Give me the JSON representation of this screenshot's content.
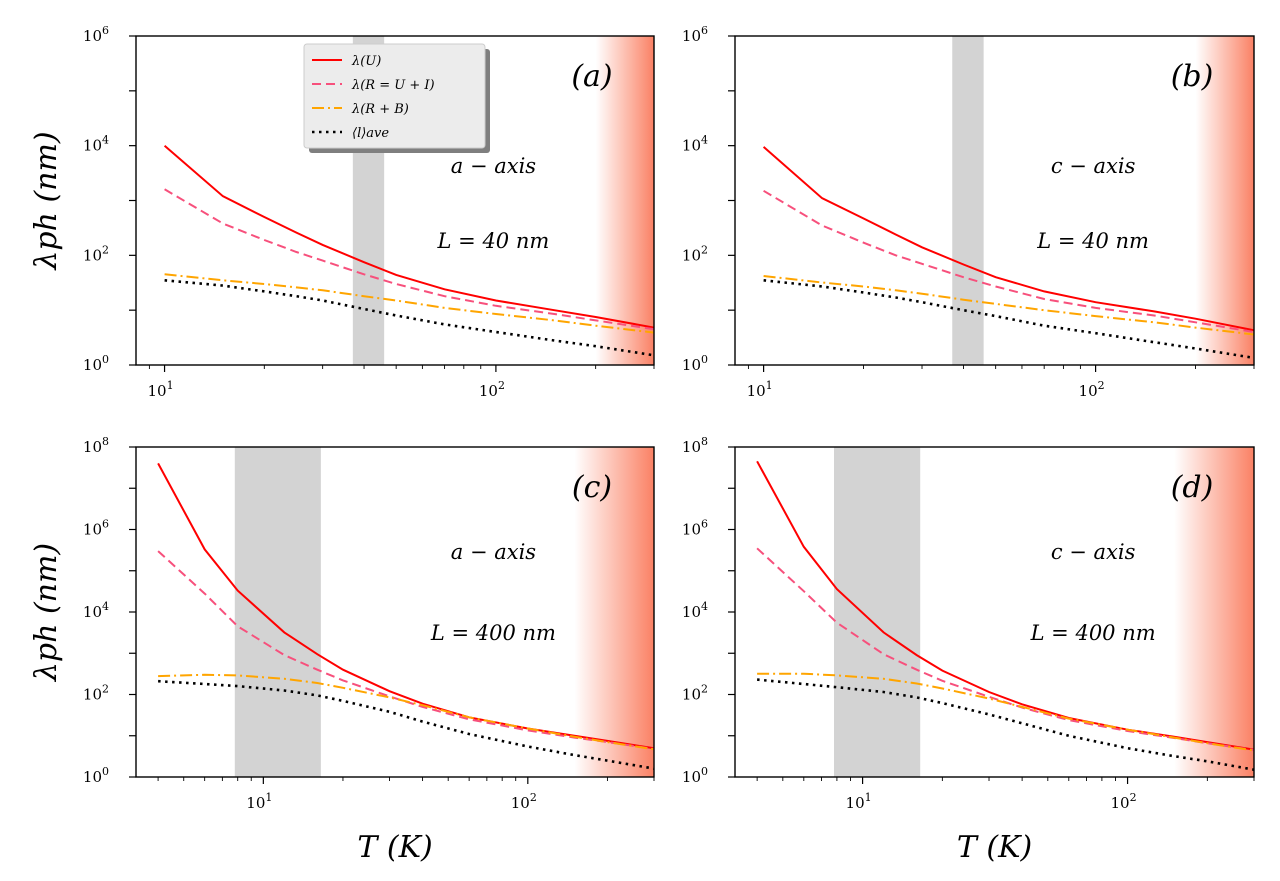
{
  "chart_data": [
    {
      "type": "line",
      "panel_label": "(a)",
      "axis_annotation": "a − axis",
      "size_annotation": "L = 40 nm",
      "xscale": "log",
      "yscale": "log",
      "xlim": [
        8.2,
        300
      ],
      "ylim": [
        1,
        1000000
      ],
      "xticks": [
        {
          "value": 10,
          "base": "10",
          "exp": "1"
        },
        {
          "value": 100,
          "base": "10",
          "exp": "2"
        }
      ],
      "yticks": [
        {
          "value": 1,
          "base": "10",
          "exp": "0"
        },
        {
          "value": 100,
          "base": "10",
          "exp": "2"
        },
        {
          "value": 10000,
          "base": "10",
          "exp": "4"
        },
        {
          "value": 1000000,
          "base": "10",
          "exp": "6"
        }
      ],
      "ylabel": "λph (nm)",
      "xlabel": "",
      "gray_band": [
        37,
        46
      ],
      "red_region": [
        200,
        300
      ],
      "legend": true,
      "x": [
        10,
        15,
        20,
        25,
        30,
        40,
        50,
        70,
        100,
        150,
        200,
        300
      ],
      "series": [
        {
          "name": "λ(U)",
          "values": [
            10000,
            1200,
            500,
            260,
            155,
            75,
            44,
            24,
            15,
            10,
            7.5,
            4.8
          ]
        },
        {
          "name": "λ(R = U + I)",
          "values": [
            1600,
            380,
            190,
            115,
            80,
            45,
            30,
            18,
            12,
            8.5,
            6.5,
            4.5
          ]
        },
        {
          "name": "λ(R + B)",
          "values": [
            45,
            35,
            30,
            26,
            23,
            18,
            15,
            11,
            8.5,
            6.5,
            5.2,
            3.9
          ]
        },
        {
          "name": "⟨l⟩ave",
          "values": [
            35,
            28,
            22,
            18,
            15,
            10.5,
            8,
            5.5,
            4,
            2.8,
            2.2,
            1.5
          ]
        }
      ]
    },
    {
      "type": "line",
      "panel_label": "(b)",
      "axis_annotation": "c − axis",
      "size_annotation": "L = 40 nm",
      "xscale": "log",
      "yscale": "log",
      "xlim": [
        8.2,
        300
      ],
      "ylim": [
        1,
        1000000
      ],
      "xticks": [
        {
          "value": 10,
          "base": "10",
          "exp": "1"
        },
        {
          "value": 100,
          "base": "10",
          "exp": "2"
        }
      ],
      "yticks": [
        {
          "value": 1,
          "base": "10",
          "exp": "0"
        },
        {
          "value": 100,
          "base": "10",
          "exp": "2"
        },
        {
          "value": 10000,
          "base": "10",
          "exp": "4"
        },
        {
          "value": 1000000,
          "base": "10",
          "exp": "6"
        }
      ],
      "ylabel": "",
      "xlabel": "",
      "gray_band": [
        37,
        46
      ],
      "red_region": [
        200,
        300
      ],
      "legend": false,
      "x": [
        10,
        15,
        20,
        25,
        30,
        40,
        50,
        70,
        100,
        150,
        200,
        300
      ],
      "series": [
        {
          "name": "λ(U)",
          "values": [
            9500,
            1100,
            470,
            240,
            140,
            68,
            40,
            22,
            14,
            9.5,
            7,
            4.3
          ]
        },
        {
          "name": "λ(R = U + I)",
          "values": [
            1500,
            350,
            170,
            100,
            70,
            40,
            27,
            16,
            11,
            8,
            6,
            4
          ]
        },
        {
          "name": "λ(R + B)",
          "values": [
            42,
            32,
            27,
            23,
            20,
            15.5,
            13,
            10,
            7.8,
            6,
            4.8,
            3.6
          ]
        },
        {
          "name": "⟨l⟩ave",
          "values": [
            35,
            27,
            21,
            17,
            14,
            10,
            7.8,
            5.2,
            3.8,
            2.6,
            2,
            1.35
          ]
        }
      ]
    },
    {
      "type": "line",
      "panel_label": "(c)",
      "axis_annotation": "a − axis",
      "size_annotation": "L = 400 nm",
      "xscale": "log",
      "yscale": "log",
      "xlim": [
        3.3,
        300
      ],
      "ylim": [
        1,
        100000000
      ],
      "xticks": [
        {
          "value": 10,
          "base": "10",
          "exp": "1"
        },
        {
          "value": 100,
          "base": "10",
          "exp": "2"
        }
      ],
      "yticks": [
        {
          "value": 1,
          "base": "10",
          "exp": "0"
        },
        {
          "value": 100,
          "base": "10",
          "exp": "2"
        },
        {
          "value": 10000,
          "base": "10",
          "exp": "4"
        },
        {
          "value": 1000000,
          "base": "10",
          "exp": "6"
        },
        {
          "value": 100000000,
          "base": "10",
          "exp": "8"
        }
      ],
      "ylabel": "λph (nm)",
      "xlabel": "T (K)",
      "gray_band": [
        7.8,
        16.5
      ],
      "red_region": [
        150,
        300
      ],
      "legend": false,
      "x": [
        4,
        6,
        8,
        12,
        16,
        20,
        30,
        40,
        60,
        100,
        150,
        200,
        300
      ],
      "series": [
        {
          "name": "λ(U)",
          "values": [
            40000000,
            330000,
            33000,
            3200,
            950,
            400,
            120,
            60,
            28,
            15,
            10,
            7.5,
            5
          ]
        },
        {
          "name": "λ(R = U + I)",
          "values": [
            300000,
            28000,
            4500,
            900,
            400,
            220,
            90,
            50,
            25,
            13.5,
            9,
            7,
            4.8
          ]
        },
        {
          "name": "λ(R + B)",
          "values": [
            280,
            300,
            290,
            240,
            190,
            145,
            85,
            55,
            28,
            15,
            9.5,
            7,
            4.7
          ]
        },
        {
          "name": "⟨l⟩ave",
          "values": [
            210,
            180,
            160,
            125,
            95,
            70,
            38,
            22,
            11,
            5.5,
            3.4,
            2.5,
            1.6
          ]
        }
      ]
    },
    {
      "type": "line",
      "panel_label": "(d)",
      "axis_annotation": "c − axis",
      "size_annotation": "L = 400 nm",
      "xscale": "log",
      "yscale": "log",
      "xlim": [
        3.3,
        300
      ],
      "ylim": [
        1,
        100000000
      ],
      "xticks": [
        {
          "value": 10,
          "base": "10",
          "exp": "1"
        },
        {
          "value": 100,
          "base": "10",
          "exp": "2"
        }
      ],
      "yticks": [
        {
          "value": 1,
          "base": "10",
          "exp": "0"
        },
        {
          "value": 100,
          "base": "10",
          "exp": "2"
        },
        {
          "value": 10000,
          "base": "10",
          "exp": "4"
        },
        {
          "value": 1000000,
          "base": "10",
          "exp": "6"
        },
        {
          "value": 100000000,
          "base": "10",
          "exp": "8"
        }
      ],
      "ylabel": "",
      "xlabel": "T (K)",
      "gray_band": [
        7.8,
        16.5
      ],
      "red_region": [
        150,
        300
      ],
      "legend": false,
      "x": [
        4,
        6,
        8,
        12,
        16,
        20,
        30,
        40,
        60,
        100,
        150,
        200,
        300
      ],
      "series": [
        {
          "name": "λ(U)",
          "values": [
            45000000,
            380000,
            36000,
            3200,
            900,
            380,
            115,
            58,
            27,
            14,
            9.5,
            7,
            4.6
          ]
        },
        {
          "name": "λ(R = U + I)",
          "values": [
            350000,
            32000,
            5500,
            950,
            400,
            215,
            88,
            48,
            24,
            13,
            8.8,
            6.6,
            4.5
          ]
        },
        {
          "name": "λ(R + B)",
          "values": [
            320,
            320,
            290,
            240,
            185,
            140,
            80,
            50,
            26,
            14,
            9,
            6.6,
            4.4
          ]
        },
        {
          "name": "⟨l⟩ave",
          "values": [
            230,
            180,
            150,
            115,
            85,
            62,
            33,
            20,
            10,
            5,
            3.2,
            2.4,
            1.5
          ]
        }
      ]
    }
  ],
  "legend_entries": [
    "λ(U)",
    "λ(R = U + I)",
    "λ(R + B)",
    "⟨l⟩ave"
  ],
  "series_styles": [
    {
      "color": "#ff0000",
      "dash": ""
    },
    {
      "color": "#f7507c",
      "dash": "9,5"
    },
    {
      "color": "#ffa500",
      "dash": "12,4,2,4"
    },
    {
      "color": "#000000",
      "dash": "2.5,4.5"
    }
  ],
  "colors": {
    "gray_band": "#d3d3d3",
    "red_region": "#fa7a5c"
  }
}
